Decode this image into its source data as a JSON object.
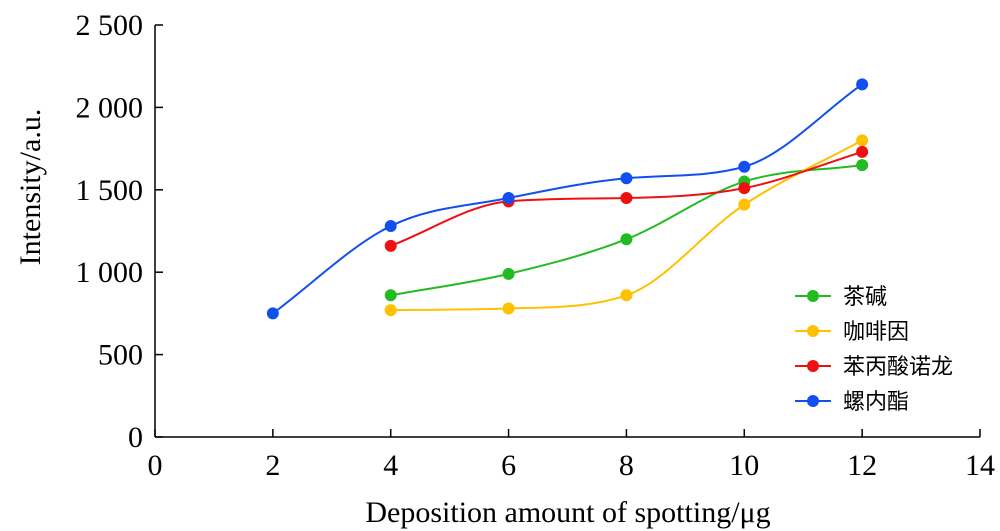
{
  "chart_data": {
    "type": "line",
    "xlabel": "Deposition amount of spotting/μg",
    "ylabel": "Intensity/a.u.",
    "xlim": [
      0,
      14
    ],
    "ylim": [
      0,
      2500
    ],
    "xticks": [
      0,
      2,
      4,
      6,
      8,
      10,
      12,
      14
    ],
    "yticks": [
      0,
      500,
      1000,
      1500,
      2000,
      2500
    ],
    "xtick_labels": [
      "0",
      "2",
      "4",
      "6",
      "8",
      "10",
      "12",
      "14"
    ],
    "ytick_labels": [
      "0",
      "500",
      "1 000",
      "1 500",
      "2 000",
      "2 500"
    ],
    "grid": false,
    "legend_position": "bottom-right",
    "smooth": true,
    "series": [
      {
        "name": "茶碱",
        "color": "#22bb22",
        "x": [
          4,
          6,
          8,
          10,
          12
        ],
        "y": [
          860,
          990,
          1200,
          1550,
          1650
        ]
      },
      {
        "name": "咖啡因",
        "color": "#ffc000",
        "x": [
          4,
          6,
          8,
          10,
          12
        ],
        "y": [
          770,
          780,
          860,
          1410,
          1800
        ]
      },
      {
        "name": "苯丙酸诺龙",
        "color": "#ee1111",
        "x": [
          4,
          6,
          8,
          10,
          12
        ],
        "y": [
          1160,
          1430,
          1450,
          1510,
          1730
        ]
      },
      {
        "name": "螺内酯",
        "color": "#1150ee",
        "x": [
          2,
          4,
          6,
          8,
          10,
          12
        ],
        "y": [
          750,
          1280,
          1450,
          1570,
          1640,
          2140
        ]
      }
    ]
  }
}
